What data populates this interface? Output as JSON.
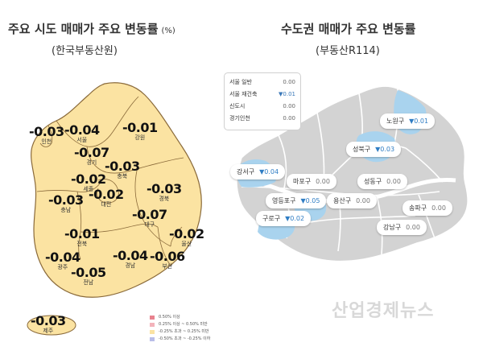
{
  "left_panel": {
    "title": "주요 시도 매매가 주요 변동률",
    "unit": "(%)",
    "source": "(한국부동산원)",
    "regions": [
      {
        "name": "인천",
        "value": "-0.03"
      },
      {
        "name": "서울",
        "value": "-0.04"
      },
      {
        "name": "경기",
        "value": "-0.07"
      },
      {
        "name": "강원",
        "value": "-0.01"
      },
      {
        "name": "충북",
        "value": "-0.03"
      },
      {
        "name": "세종",
        "value": "-0.02"
      },
      {
        "name": "충남",
        "value": "-0.03"
      },
      {
        "name": "대전",
        "value": "-0.02"
      },
      {
        "name": "경북",
        "value": "-0.03"
      },
      {
        "name": "대구",
        "value": "-0.07"
      },
      {
        "name": "전북",
        "value": "-0.01"
      },
      {
        "name": "울산",
        "value": "-0.02"
      },
      {
        "name": "광주",
        "value": "-0.04"
      },
      {
        "name": "경남",
        "value": "-0.04"
      },
      {
        "name": "부산",
        "value": "-0.06"
      },
      {
        "name": "전남",
        "value": "-0.05"
      },
      {
        "name": "제주",
        "value": "-0.03"
      }
    ],
    "legend": [
      {
        "label": "0.50% 이상",
        "color": "#e8828e"
      },
      {
        "label": "0.25% 이상 ~ 0.50% 미만",
        "color": "#f3b3bb"
      },
      {
        "label": "-0.25% 초과 ~ 0.25% 미만",
        "color": "#fbe3a2"
      },
      {
        "label": "-0.50% 초과 ~ -0.25% 이하",
        "color": "#b9bde8"
      }
    ],
    "map_fill": "#fbe3a2",
    "map_stroke": "#8a6a3a"
  },
  "right_panel": {
    "title": "수도권 매매가 주요 변동률",
    "source": "(부동산R114)",
    "summary": [
      {
        "label": "서울 일반",
        "value": "0.00",
        "down": false
      },
      {
        "label": "서울 재건축",
        "value": "▼0.01",
        "down": true
      },
      {
        "label": "신도시",
        "value": "0.00",
        "down": false
      },
      {
        "label": "경기인천",
        "value": "0.00",
        "down": false
      }
    ],
    "districts": [
      {
        "name": "노원구",
        "value": "▼0.01",
        "down": true
      },
      {
        "name": "성북구",
        "value": "▼0.03",
        "down": true
      },
      {
        "name": "강서구",
        "value": "▼0.04",
        "down": true
      },
      {
        "name": "마포구",
        "value": "0.00",
        "down": false
      },
      {
        "name": "성동구",
        "value": "0.00",
        "down": false
      },
      {
        "name": "영등포구",
        "value": "▼0.05",
        "down": true
      },
      {
        "name": "용산구",
        "value": "0.00",
        "down": false
      },
      {
        "name": "송파구",
        "value": "0.00",
        "down": false
      },
      {
        "name": "구로구",
        "value": "▼0.02",
        "down": true
      },
      {
        "name": "강남구",
        "value": "0.00",
        "down": false
      }
    ],
    "highlight_color": "#a9d3ee",
    "base_color": "#d3d3d3"
  },
  "watermark": "산업경제뉴스"
}
